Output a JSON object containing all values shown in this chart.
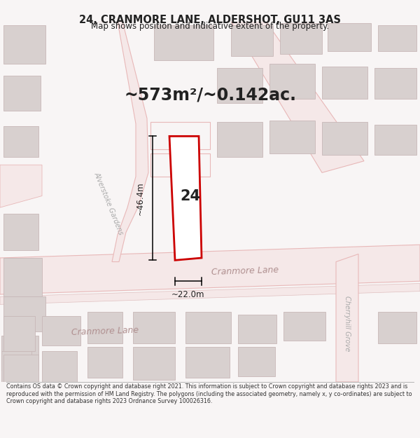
{
  "title_line1": "24, CRANMORE LANE, ALDERSHOT, GU11 3AS",
  "title_line2": "Map shows position and indicative extent of the property.",
  "area_text": "~573m²/~0.142ac.",
  "dim_height": "~46.4m",
  "dim_width": "~22.0m",
  "property_label": "24",
  "footer_text": "Contains OS data © Crown copyright and database right 2021. This information is subject to Crown copyright and database rights 2023 and is reproduced with the permission of HM Land Registry. The polygons (including the associated geometry, namely x, y co-ordinates) are subject to Crown copyright and database rights 2023 Ordnance Survey 100026316.",
  "bg_color": "#f8f5f5",
  "map_bg": "#ffffff",
  "road_fill": "#f5e8e8",
  "road_edge": "#e8b8b8",
  "building_fill": "#d8d0cf",
  "building_edge": "#c8b8b8",
  "property_color": "#cc0000",
  "dim_color": "#000000",
  "text_color": "#222222",
  "road_text_color": "#b09090",
  "street_text_color": "#aaaaaa"
}
